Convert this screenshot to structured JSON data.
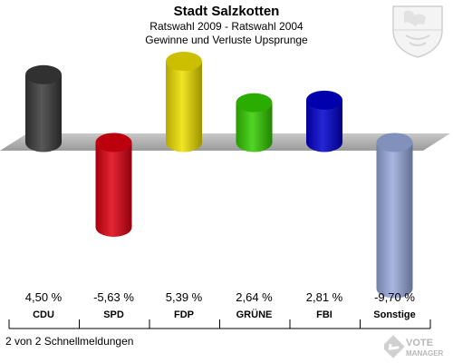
{
  "header": {
    "title": "Stadt Salzkotten",
    "subtitle": "Ratswahl 2009 - Ratswahl 2004",
    "subtitle2": "Gewinne und Verluste Upsprunge"
  },
  "footer": {
    "text": "2 von 2 Schnellmeldungen"
  },
  "logo": {
    "line1": "VOTE",
    "line2": "MANAGER"
  },
  "chart_data": {
    "type": "bar",
    "title": "Stadt Salzkotten",
    "subtitle": "Ratswahl 2009 - Ratswahl 2004 / Gewinne und Verluste Upsprunge",
    "categories": [
      "CDU",
      "SPD",
      "FDP",
      "GRÜNE",
      "FBI",
      "Sonstige"
    ],
    "values": [
      4.5,
      -5.63,
      5.39,
      2.64,
      2.81,
      -9.7
    ],
    "value_labels": [
      "4,50 %",
      "-5,63 %",
      "5,39 %",
      "2,64 %",
      "2,81 %",
      "-9,70 %"
    ],
    "colors": [
      "#3a3a3a",
      "#dd0011",
      "#f0e000",
      "#33cc00",
      "#0000cc",
      "#99aadd"
    ],
    "ylim": [
      -10,
      6
    ],
    "unit": "%",
    "grid": false,
    "legend": "none"
  }
}
